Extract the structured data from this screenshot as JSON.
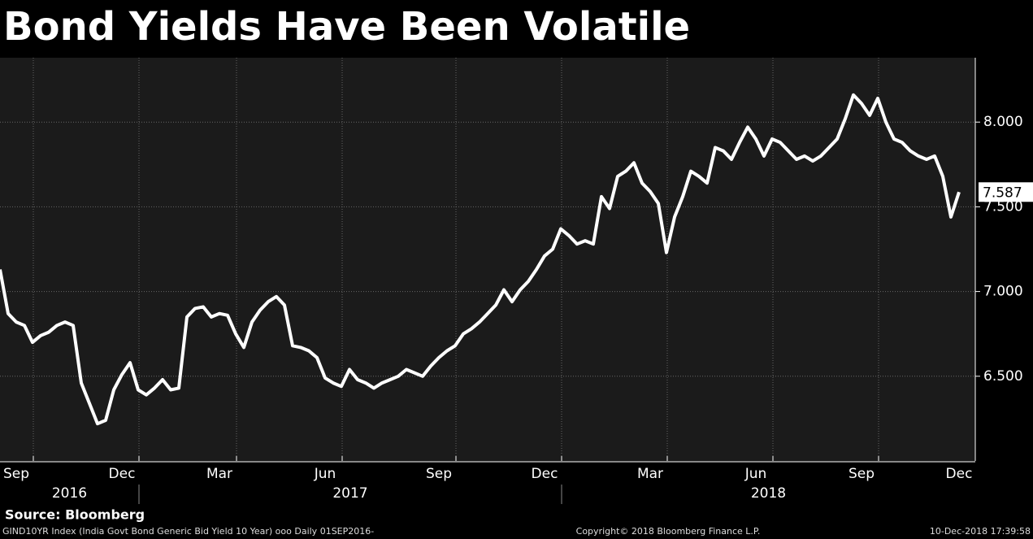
{
  "chart_data": {
    "type": "line",
    "title": "Bond Yields Have Been Volatile",
    "source": "Source: Bloomberg",
    "footer_left": "GIND10YR Index (India Govt Bond Generic Bid Yield 10 Year) ooo  Daily 01SEP2016-",
    "footer_center": "Copyright© 2018 Bloomberg Finance L.P.",
    "footer_right": "10-Dec-2018 17:39:58",
    "color": "#ffffff",
    "grid": true,
    "ylim": [
      6.0,
      8.38
    ],
    "yticks": [
      {
        "value": 6.5,
        "label": "6.500"
      },
      {
        "value": 7.0,
        "label": "7.000"
      },
      {
        "value": 7.5,
        "label": "7.500"
      },
      {
        "value": 8.0,
        "label": "8.000"
      }
    ],
    "years": [
      "2016",
      "2017",
      "2018"
    ],
    "categories": [
      null,
      null,
      "Sep",
      null,
      null,
      null,
      null,
      null,
      null,
      null,
      null,
      null,
      null,
      null,
      null,
      "Dec",
      null,
      null,
      null,
      null,
      null,
      null,
      null,
      null,
      null,
      null,
      null,
      "Mar",
      null,
      null,
      null,
      null,
      null,
      null,
      null,
      null,
      null,
      null,
      null,
      null,
      "Jun",
      null,
      null,
      null,
      null,
      null,
      null,
      null,
      null,
      null,
      null,
      null,
      null,
      null,
      "Sep",
      null,
      null,
      null,
      null,
      null,
      null,
      null,
      null,
      null,
      null,
      null,
      null,
      "Dec",
      null,
      null,
      null,
      null,
      null,
      null,
      null,
      null,
      null,
      null,
      null,
      null,
      "Mar",
      null,
      null,
      null,
      null,
      null,
      null,
      null,
      null,
      null,
      null,
      null,
      null,
      "Jun",
      null,
      null,
      null,
      null,
      null,
      null,
      null,
      null,
      null,
      null,
      null,
      null,
      "Sep",
      null,
      null,
      null,
      null,
      null,
      null,
      null,
      null,
      null,
      null,
      null,
      "Dec"
    ],
    "values": [
      7.13,
      6.87,
      6.82,
      6.8,
      6.7,
      6.74,
      6.76,
      6.8,
      6.82,
      6.8,
      6.46,
      6.34,
      6.22,
      6.24,
      6.42,
      6.51,
      6.58,
      6.42,
      6.39,
      6.43,
      6.48,
      6.42,
      6.43,
      6.85,
      6.9,
      6.91,
      6.85,
      6.87,
      6.86,
      6.75,
      6.67,
      6.82,
      6.89,
      6.94,
      6.97,
      6.92,
      6.68,
      6.67,
      6.65,
      6.61,
      6.49,
      6.46,
      6.44,
      6.54,
      6.48,
      6.46,
      6.43,
      6.46,
      6.48,
      6.5,
      6.54,
      6.52,
      6.5,
      6.56,
      6.61,
      6.65,
      6.68,
      6.75,
      6.78,
      6.82,
      6.87,
      6.92,
      7.01,
      6.94,
      7.01,
      7.06,
      7.13,
      7.21,
      7.25,
      7.37,
      7.33,
      7.28,
      7.3,
      7.28,
      7.56,
      7.49,
      7.68,
      7.71,
      7.76,
      7.64,
      7.59,
      7.52,
      7.23,
      7.44,
      7.56,
      7.71,
      7.68,
      7.64,
      7.85,
      7.83,
      7.78,
      7.88,
      7.97,
      7.9,
      7.8,
      7.9,
      7.88,
      7.83,
      7.78,
      7.8,
      7.77,
      7.8,
      7.85,
      7.9,
      8.02,
      8.16,
      8.11,
      8.04,
      8.14,
      8.0,
      7.9,
      7.88,
      7.83,
      7.8,
      7.78,
      7.8,
      7.68,
      7.44,
      7.587
    ]
  }
}
